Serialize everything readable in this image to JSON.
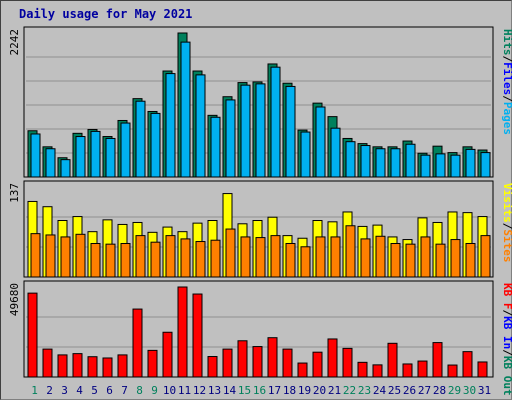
{
  "title": "Daily usage for May 2021",
  "colors": {
    "hits": "#00805c",
    "files": "#00b0f0",
    "pages": "#00b0f0",
    "visits": "#ffff00",
    "sites": "#ff8000",
    "kbin": "#0000ff",
    "kbout": "#ff0000",
    "day_black": "#000080",
    "day_green": "#00805c",
    "frame": "#c0c0c0"
  },
  "chart_data": [
    {
      "type": "bar",
      "panel": "hits-files-pages",
      "scale_label": "2242",
      "ylim": [
        0,
        2242
      ],
      "legend": [
        {
          "text": "Hits",
          "color": "#00805c"
        },
        {
          "text": "/",
          "color": "#000000"
        },
        {
          "text": "Files",
          "color": "#0000ff"
        },
        {
          "text": "/",
          "color": "#000000"
        },
        {
          "text": "Pages",
          "color": "#00b0f0"
        }
      ],
      "categories": [
        "1",
        "2",
        "3",
        "4",
        "5",
        "6",
        "7",
        "8",
        "9",
        "10",
        "11",
        "12",
        "13",
        "14",
        "15",
        "16",
        "17",
        "18",
        "19",
        "20",
        "21",
        "22",
        "23",
        "24",
        "25",
        "26",
        "27",
        "28",
        "29",
        "30",
        "31"
      ],
      "series": [
        {
          "name": "Hits",
          "values": [
            720,
            470,
            300,
            680,
            740,
            630,
            880,
            1220,
            1020,
            1650,
            2242,
            1650,
            960,
            1250,
            1470,
            1480,
            1760,
            1460,
            730,
            1150,
            940,
            600,
            520,
            470,
            470,
            560,
            370,
            480,
            380,
            470,
            420
          ]
        },
        {
          "name": "Files",
          "values": [
            670,
            440,
            270,
            630,
            710,
            600,
            840,
            1180,
            990,
            1610,
            2100,
            1590,
            930,
            1200,
            1430,
            1450,
            1710,
            1410,
            700,
            1090,
            760,
            550,
            490,
            440,
            440,
            510,
            340,
            360,
            340,
            430,
            380
          ]
        }
      ]
    },
    {
      "type": "bar",
      "panel": "visits-sites",
      "scale_label": "137",
      "ylim": [
        0,
        137
      ],
      "legend": [
        {
          "text": "Visits",
          "color": "#ffff00"
        },
        {
          "text": "/",
          "color": "#000000"
        },
        {
          "text": "Sites",
          "color": "#ff8000"
        }
      ],
      "categories": [
        "1",
        "2",
        "3",
        "4",
        "5",
        "6",
        "7",
        "8",
        "9",
        "10",
        "11",
        "12",
        "13",
        "14",
        "15",
        "16",
        "17",
        "18",
        "19",
        "20",
        "21",
        "22",
        "23",
        "24",
        "25",
        "26",
        "27",
        "28",
        "29",
        "30",
        "31"
      ],
      "series": [
        {
          "name": "Visits",
          "values": [
            115,
            107,
            86,
            92,
            69,
            87,
            80,
            83,
            68,
            76,
            69,
            82,
            86,
            127,
            81,
            86,
            91,
            63,
            59,
            86,
            84,
            99,
            77,
            79,
            61,
            57,
            90,
            83,
            99,
            98,
            92
          ]
        },
        {
          "name": "Sites",
          "values": [
            66,
            64,
            61,
            65,
            51,
            50,
            51,
            63,
            53,
            63,
            58,
            54,
            56,
            73,
            61,
            60,
            63,
            51,
            46,
            61,
            61,
            78,
            58,
            62,
            51,
            50,
            61,
            50,
            57,
            51,
            63
          ]
        }
      ]
    },
    {
      "type": "bar",
      "panel": "kb",
      "scale_label": "49680",
      "ylim": [
        0,
        49680
      ],
      "legend": [
        {
          "text": "KB F",
          "color": "#ff0000"
        },
        {
          "text": "/",
          "color": "#000000"
        },
        {
          "text": "KB In",
          "color": "#0000ff"
        },
        {
          "text": "/",
          "color": "#000000"
        },
        {
          "text": "KB Out",
          "color": "#00805c"
        }
      ],
      "categories": [
        "1",
        "2",
        "3",
        "4",
        "5",
        "6",
        "7",
        "8",
        "9",
        "10",
        "11",
        "12",
        "13",
        "14",
        "15",
        "16",
        "17",
        "18",
        "19",
        "20",
        "21",
        "22",
        "23",
        "24",
        "25",
        "26",
        "27",
        "28",
        "29",
        "30",
        "31"
      ],
      "series": [
        {
          "name": "KB F",
          "values": [
            46300,
            15400,
            12200,
            12900,
            11200,
            10500,
            12200,
            37500,
            14700,
            24700,
            49680,
            45800,
            11300,
            15400,
            20000,
            16800,
            21700,
            15400,
            7700,
            13700,
            21000,
            15800,
            8100,
            6700,
            18600,
            7200,
            8800,
            19000,
            6600,
            14000,
            8300
          ]
        }
      ]
    }
  ],
  "day_labels": [
    {
      "text": "1",
      "color": "#00805c"
    },
    {
      "text": "2",
      "color": "#000080"
    },
    {
      "text": "3",
      "color": "#000080"
    },
    {
      "text": "4",
      "color": "#000080"
    },
    {
      "text": "5",
      "color": "#000080"
    },
    {
      "text": "6",
      "color": "#000080"
    },
    {
      "text": "7",
      "color": "#000080"
    },
    {
      "text": "8",
      "color": "#00805c"
    },
    {
      "text": "9",
      "color": "#00805c"
    },
    {
      "text": "10",
      "color": "#000080"
    },
    {
      "text": "11",
      "color": "#000080"
    },
    {
      "text": "12",
      "color": "#000080"
    },
    {
      "text": "13",
      "color": "#000080"
    },
    {
      "text": "14",
      "color": "#000080"
    },
    {
      "text": "15",
      "color": "#00805c"
    },
    {
      "text": "16",
      "color": "#00805c"
    },
    {
      "text": "17",
      "color": "#000080"
    },
    {
      "text": "18",
      "color": "#000080"
    },
    {
      "text": "19",
      "color": "#000080"
    },
    {
      "text": "20",
      "color": "#000080"
    },
    {
      "text": "21",
      "color": "#000080"
    },
    {
      "text": "22",
      "color": "#00805c"
    },
    {
      "text": "23",
      "color": "#00805c"
    },
    {
      "text": "24",
      "color": "#000080"
    },
    {
      "text": "25",
      "color": "#000080"
    },
    {
      "text": "26",
      "color": "#000080"
    },
    {
      "text": "27",
      "color": "#000080"
    },
    {
      "text": "28",
      "color": "#000080"
    },
    {
      "text": "29",
      "color": "#00805c"
    },
    {
      "text": "30",
      "color": "#00805c"
    },
    {
      "text": "31",
      "color": "#000080"
    }
  ]
}
